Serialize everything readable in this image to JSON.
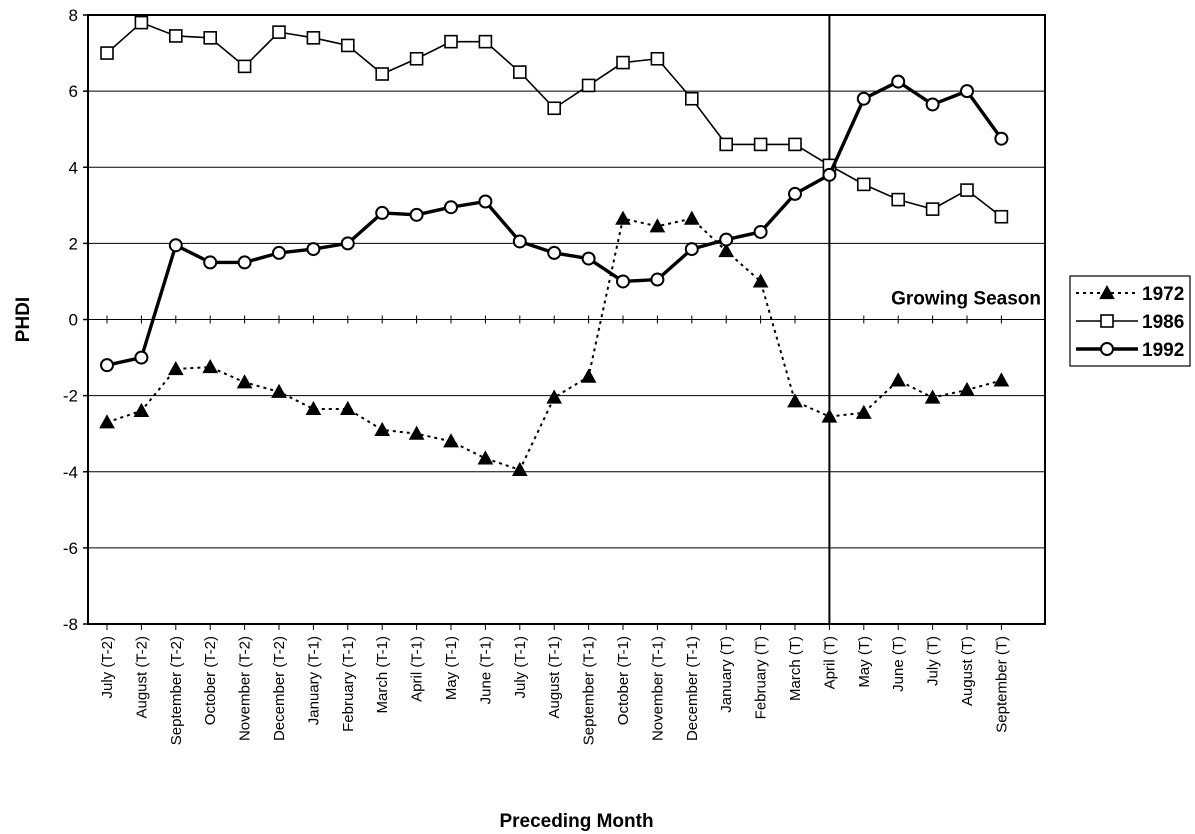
{
  "chart_data": {
    "type": "line",
    "xlabel": "Preceding Month",
    "ylabel": "PHDI",
    "ylim": [
      -8,
      8
    ],
    "yticks": [
      -8,
      -6,
      -4,
      -2,
      0,
      2,
      4,
      6,
      8
    ],
    "grid": true,
    "legend_position": "right",
    "categories": [
      "July (T-2)",
      "August (T-2)",
      "September (T-2)",
      "October (T-2)",
      "November (T-2)",
      "December (T-2)",
      "January (T-1)",
      "February (T-1)",
      "March (T-1)",
      "April (T-1)",
      "May (T-1)",
      "June (T-1)",
      "July (T-1)",
      "August (T-1)",
      "September (T-1)",
      "October (T-1)",
      "November (T-1)",
      "December (T-1)",
      "January (T)",
      "February (T)",
      "March (T)",
      "April (T)",
      "May (T)",
      "June (T)",
      "July (T)",
      "August (T)",
      "September (T)"
    ],
    "series": [
      {
        "name": "1972",
        "style": "dotted",
        "marker": "triangle-filled",
        "values": [
          -2.7,
          -2.4,
          -1.3,
          -1.25,
          -1.65,
          -1.9,
          -2.35,
          -2.35,
          -2.9,
          -3.0,
          -3.2,
          -3.65,
          -3.95,
          -2.05,
          -1.5,
          2.65,
          2.45,
          2.65,
          1.8,
          1.0,
          -2.15,
          -2.55,
          -2.45,
          -1.6,
          -2.05,
          -1.85,
          -1.6
        ]
      },
      {
        "name": "1986",
        "style": "solid-thin",
        "marker": "square-open",
        "values": [
          7.0,
          7.8,
          7.45,
          7.4,
          6.65,
          7.55,
          7.4,
          7.2,
          6.45,
          6.85,
          7.3,
          7.3,
          6.5,
          5.55,
          6.15,
          6.75,
          6.85,
          5.8,
          4.6,
          4.6,
          4.6,
          4.05,
          3.55,
          3.15,
          2.9,
          3.4,
          2.7
        ]
      },
      {
        "name": "1992",
        "style": "solid-thick",
        "marker": "circle-open",
        "values": [
          -1.2,
          -1.0,
          1.95,
          1.5,
          1.5,
          1.75,
          1.85,
          2.0,
          2.8,
          2.75,
          2.95,
          3.1,
          2.05,
          1.75,
          1.6,
          1.0,
          1.05,
          1.85,
          2.1,
          2.3,
          3.3,
          3.8,
          5.8,
          6.25,
          5.65,
          6.0,
          4.75
        ]
      }
    ],
    "divider_after_category": "April (T)",
    "annotation": "Growing Season",
    "colors": {
      "line": "#000000",
      "grid": "#000000",
      "background": "#ffffff"
    }
  }
}
